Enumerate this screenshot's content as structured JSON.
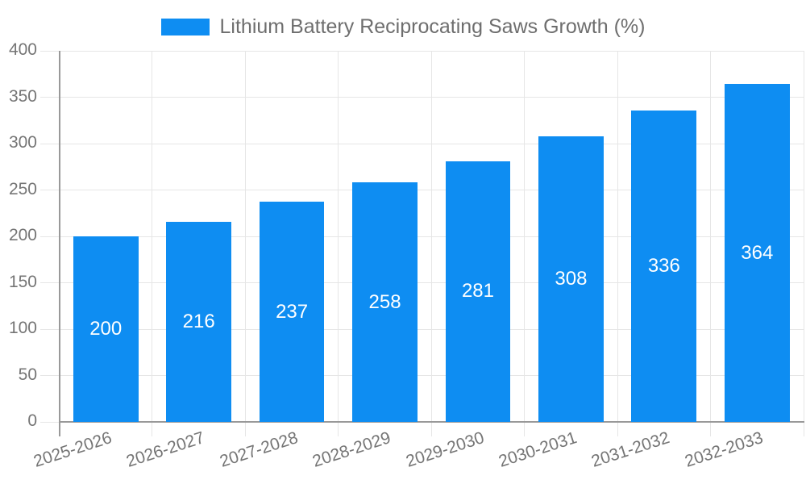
{
  "chart_data": {
    "type": "bar",
    "legend": "Lithium Battery Reciprocating Saws Growth (%)",
    "legend_position": "top-center",
    "categories": [
      "2025-2026",
      "2026-2027",
      "2027-2028",
      "2028-2029",
      "2029-2030",
      "2030-2031",
      "2031-2032",
      "2032-2033"
    ],
    "values": [
      200,
      216,
      237,
      258,
      281,
      308,
      336,
      364
    ],
    "xlabel": "",
    "ylabel": "",
    "ylim": [
      0,
      400
    ],
    "yticks": [
      0,
      50,
      100,
      150,
      200,
      250,
      300,
      350,
      400
    ],
    "grid": true,
    "grid_vertical": true,
    "bar_width_fraction": 0.7,
    "x_label_rotation_deg": -18
  },
  "colors": {
    "bar": "#0E8DF2",
    "value_label": "#ffffff",
    "axis_label": "#757575",
    "legend_text": "#6e6e6e",
    "axis_line": "#999999",
    "gridline": "#e6e6e6",
    "background": "#ffffff"
  }
}
